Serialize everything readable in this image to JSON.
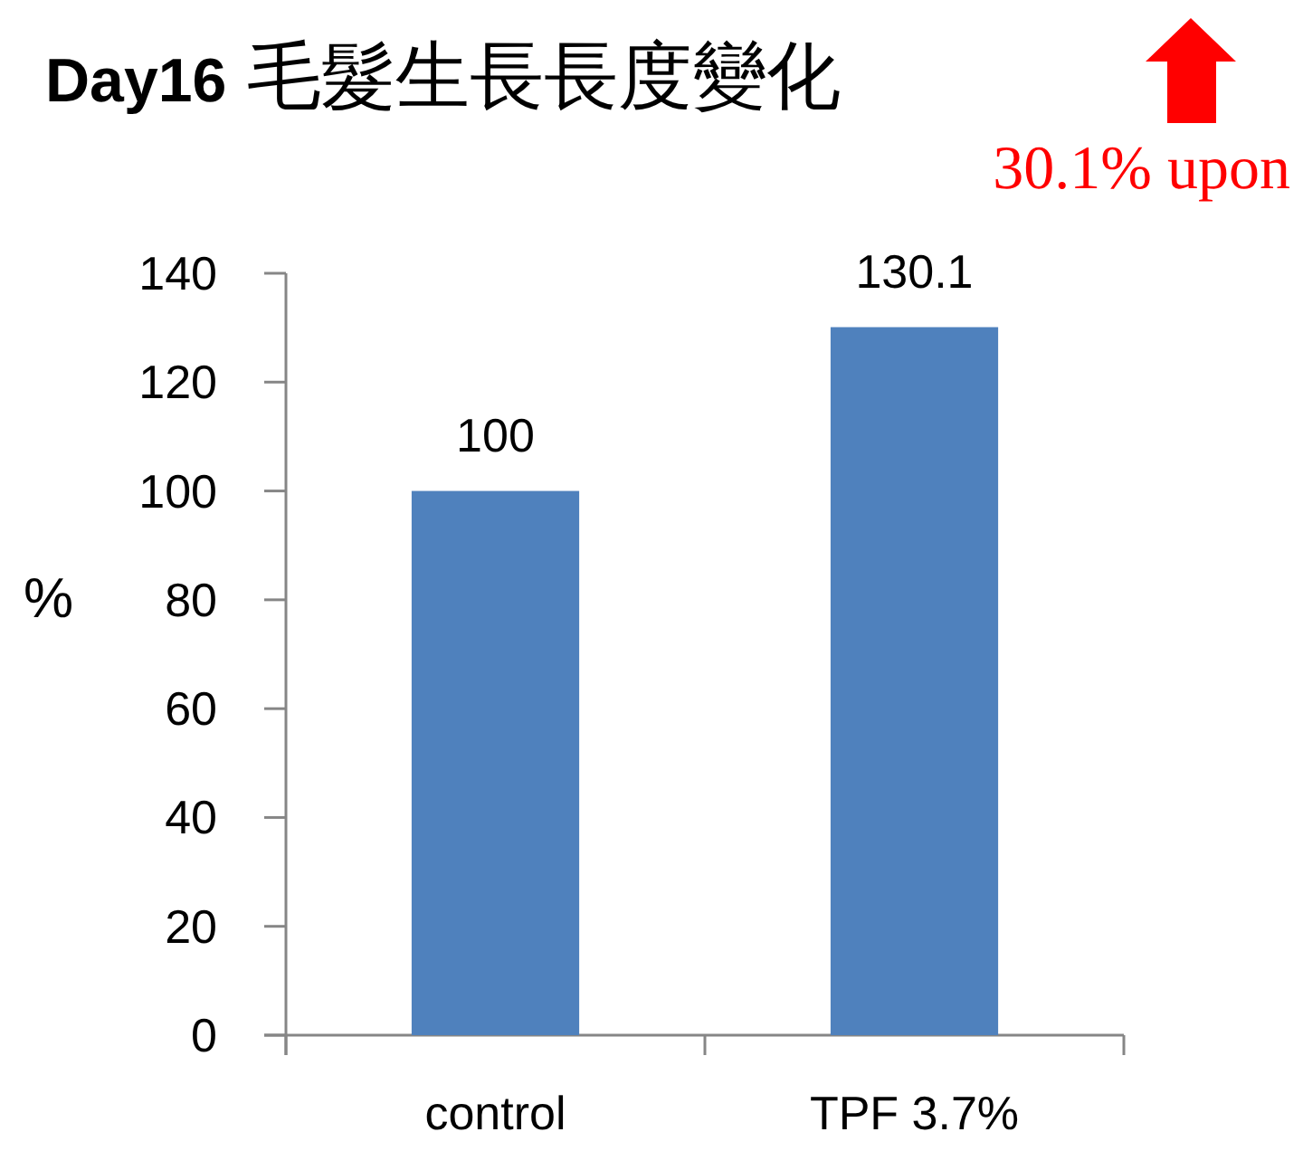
{
  "chart_data": {
    "type": "bar",
    "title": "Day16 毛髮生長長度變化",
    "ylabel": "%",
    "categories": [
      "control",
      "TPF 3.7%"
    ],
    "values": [
      100,
      130.1
    ],
    "color": "#4f81bd",
    "ylim": [
      0,
      140
    ],
    "yticks": [
      0,
      20,
      40,
      60,
      80,
      100,
      120,
      140
    ],
    "data_labels": true,
    "annotations": [
      "30.1% upon"
    ]
  }
}
